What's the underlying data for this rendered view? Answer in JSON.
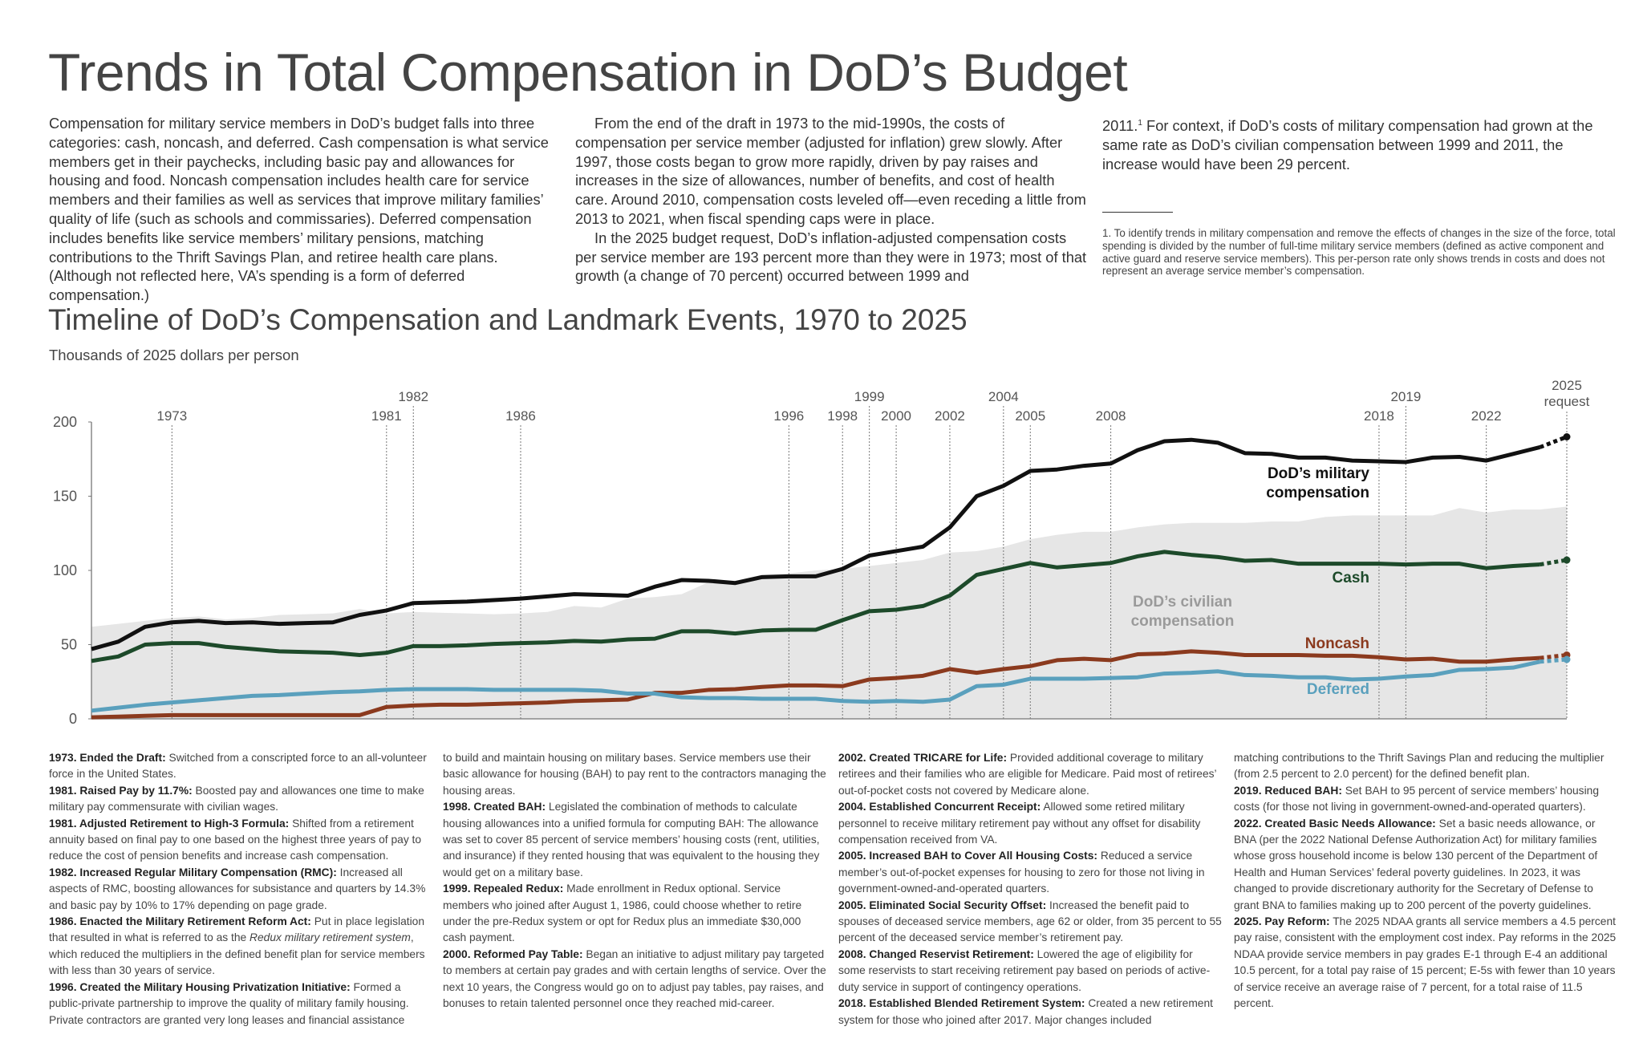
{
  "title": "Trends in Total Compensation in DoD’s Budget",
  "intro": {
    "col1": "Compensation for military service members in DoD’s budget falls into three categories: cash, noncash, and deferred. Cash compensation is what service members get in their paychecks, including basic pay and allowances for housing and food. Noncash compensation includes health care for service members and their families as well as services that improve military families’ quality of life (such as schools and commissaries). Deferred compensation includes benefits like service members’ military pensions, matching contributions to the Thrift Savings Plan, and retiree health care plans. (Although not reflected here, VA’s spending is a form of deferred compensation.)",
    "col2_p1": "From the end of the draft in 1973 to the mid-1990s, the costs of compensation per service member (adjusted for inflation) grew slowly. After 1997, those costs began to grow more rapidly, driven by pay raises and increases in the size of allowances, number of benefits, and cost of health care. Around 2010, compensation costs leveled off—even receding a little from 2013 to 2021, when fiscal spending caps were in place.",
    "col2_p2": "In the 2025 budget request, DoD’s inflation-adjusted compensation costs per service member are 193 percent more than they were in 1973; most of that growth (a change of 70 percent) occurred between 1999 and",
    "col3_lead": "2011.",
    "col3_sup": "1",
    "col3_text": " For context, if DoD’s costs of military compensation had grown at the same rate as DoD’s civilian compensation between 1999 and 2011, the increase would have been 29 percent.",
    "footnote": "1.  To identify trends in military compensation and remove the effects of changes in the size of the force, total spending is divided by the number of full-time military service members (defined as active component and active guard and reserve service members). This per-person rate only shows trends in costs and does not represent an average service member’s compensation."
  },
  "chart_data": {
    "type": "line",
    "title": "Timeline of DoD’s Compensation and Landmark Events, 1970 to 2025",
    "ylabel": "Thousands of 2025 dollars per person",
    "ylim": [
      0,
      200
    ],
    "xlim": [
      1970,
      2025
    ],
    "yticks": [
      "0",
      "50",
      "100",
      "150",
      "200"
    ],
    "grid": false,
    "x": [
      1970,
      1971,
      1972,
      1973,
      1974,
      1975,
      1976,
      1977,
      1978,
      1979,
      1980,
      1981,
      1982,
      1983,
      1984,
      1985,
      1986,
      1987,
      1988,
      1989,
      1990,
      1991,
      1992,
      1993,
      1994,
      1995,
      1996,
      1997,
      1998,
      1999,
      2000,
      2001,
      2002,
      2003,
      2004,
      2005,
      2006,
      2007,
      2008,
      2009,
      2010,
      2011,
      2012,
      2013,
      2014,
      2015,
      2016,
      2017,
      2018,
      2019,
      2020,
      2021,
      2022,
      2023,
      2024,
      2025
    ],
    "projected_from": 2024,
    "series": [
      {
        "name": "DoD’s military compensation",
        "color": "#111111",
        "values": [
          47,
          52,
          62,
          65,
          66,
          64.5,
          65,
          64,
          64.5,
          65,
          70,
          73,
          78,
          78.5,
          79,
          80,
          81,
          82.5,
          84,
          83.5,
          83,
          89,
          93.5,
          93,
          91.5,
          95.5,
          96,
          96,
          101,
          110,
          113,
          116,
          129,
          150,
          157,
          167,
          168,
          170.5,
          172,
          181,
          187,
          188,
          186,
          179,
          178.5,
          176,
          176,
          174,
          173.5,
          173,
          176,
          176.5,
          174,
          178.5,
          183,
          190
        ]
      },
      {
        "name": "Cash",
        "color": "#1d4a2a",
        "values": [
          39,
          42,
          50,
          51,
          51,
          48.5,
          47,
          45.5,
          45,
          44.5,
          43,
          44.5,
          49,
          49,
          49.5,
          50.5,
          51,
          51.5,
          52.5,
          52,
          53.5,
          54,
          59,
          59,
          57.5,
          59.5,
          60,
          60,
          66.5,
          72.5,
          73.5,
          76,
          83,
          97,
          101,
          105,
          102,
          103.5,
          105,
          109.5,
          112.5,
          110.5,
          109,
          106.5,
          107,
          104.5,
          104.5,
          104.5,
          104.5,
          104,
          104.5,
          104.5,
          101.5,
          103,
          104,
          107
        ]
      },
      {
        "name": "Noncash",
        "color": "#8b3a1e",
        "values": [
          1,
          1.5,
          2,
          2.5,
          2.5,
          2.5,
          2.5,
          2.5,
          2.5,
          2.5,
          2.5,
          8,
          9,
          9.5,
          9.5,
          10,
          10.5,
          11,
          12,
          12.5,
          13,
          17.5,
          17.5,
          19.5,
          20,
          21.5,
          22.5,
          22.5,
          22,
          26.5,
          27.5,
          29,
          33.5,
          31,
          33.5,
          35.5,
          39.5,
          40.5,
          39.5,
          43.5,
          44,
          45.5,
          44.5,
          43,
          43,
          43,
          42.5,
          42.5,
          41.5,
          40,
          40.5,
          38.5,
          38.5,
          40,
          41,
          43
        ]
      },
      {
        "name": "Deferred",
        "color": "#5aa0bd",
        "values": [
          5.5,
          7.5,
          9.5,
          11,
          12.5,
          14,
          15.5,
          16,
          17,
          18,
          18.5,
          19.5,
          20,
          20,
          20,
          19.5,
          19.5,
          19.5,
          19.5,
          19,
          17,
          17,
          14.5,
          14,
          14,
          13.5,
          13.5,
          13.5,
          12,
          11.5,
          12,
          11.5,
          13,
          22,
          23,
          27,
          27,
          27,
          27.5,
          28,
          30.5,
          31,
          32,
          29.5,
          29,
          28,
          28,
          26.5,
          27,
          28.5,
          29.5,
          33,
          33.5,
          34.5,
          38.5,
          40
        ]
      },
      {
        "name": "DoD’s civilian compensation",
        "type": "area",
        "color": "#e6e6e6",
        "values": [
          62,
          64,
          66,
          68,
          69,
          67,
          68,
          70,
          70.5,
          71,
          74,
          71,
          72,
          71.5,
          71,
          70.5,
          71,
          72,
          76,
          75,
          81,
          82,
          84,
          92,
          93,
          97,
          98,
          100,
          101,
          103,
          105,
          107,
          112,
          113,
          116,
          121,
          124,
          126,
          126,
          129,
          131,
          132,
          132,
          132,
          133,
          133,
          136,
          137,
          137,
          137,
          137,
          142,
          139,
          141,
          141,
          143
        ]
      }
    ],
    "series_labels": {
      "military": [
        "DoD’s military",
        "compensation"
      ],
      "cash": "Cash",
      "noncash": "Noncash",
      "deferred": "Deferred",
      "civilian": [
        "DoD’s civilian",
        "compensation"
      ]
    },
    "events": [
      {
        "year": 1973,
        "label": "1973",
        "row": 1
      },
      {
        "year": 1981,
        "label": "1981",
        "row": 1
      },
      {
        "year": 1982,
        "label": "1982",
        "row": 2
      },
      {
        "year": 1986,
        "label": "1986",
        "row": 1
      },
      {
        "year": 1996,
        "label": "1996",
        "row": 1
      },
      {
        "year": 1998,
        "label": "1998",
        "row": 1
      },
      {
        "year": 1999,
        "label": "1999",
        "row": 2
      },
      {
        "year": 2000,
        "label": "2000",
        "row": 1
      },
      {
        "year": 2002,
        "label": "2002",
        "row": 1
      },
      {
        "year": 2004,
        "label": "2004",
        "row": 2
      },
      {
        "year": 2005,
        "label": "2005",
        "row": 1
      },
      {
        "year": 2008,
        "label": "2008",
        "row": 1
      },
      {
        "year": 2018,
        "label": "2018",
        "row": 1
      },
      {
        "year": 2019,
        "label": "2019",
        "row": 2
      },
      {
        "year": 2022,
        "label": "2022",
        "row": 1
      },
      {
        "year": 2025,
        "label": "2025",
        "sublabel": "request",
        "row": 3
      }
    ]
  },
  "notes": [
    [
      {
        "title": "1973. Ended the Draft:",
        "text": " Switched from a conscripted force to an all-volunteer force in the United States."
      },
      {
        "title": "1981. Raised Pay by 11.7%:",
        "text": " Boosted pay and allowances one time to make military pay commensurate with civilian wages."
      },
      {
        "title": "1981. Adjusted Retirement to High-3 Formula:",
        "text": " Shifted from a retirement annuity based on final pay to one based on the highest three years of pay to reduce the cost of pension benefits and increase cash compensation."
      },
      {
        "title": "1982. Increased Regular Military Compensation (RMC):",
        "text": " Increased all aspects of RMC, boosting allowances for subsistance and quarters by 14.3% and basic pay by 10% to 17% depending on page grade."
      },
      {
        "title": "1986. Enacted the Military Retirement Reform Act:",
        "text": " Put in place legislation that resulted in what is referred to as the ",
        "italic": "Redux military retirement system",
        "text2": ", which reduced the multipliers in the defined benefit plan for service members with less than 30 years of service."
      },
      {
        "title": "1996. Created the Military Housing Privatization Initiative:",
        "text": " Formed a public-private partnership to improve the quality of military family housing. Private contractors are granted very long leases and financial assistance"
      }
    ],
    [
      {
        "text": "to build and maintain housing on military bases. Service members use their basic allowance for housing (BAH) to pay rent to the contractors managing the housing areas."
      },
      {
        "title": "1998. Created BAH:",
        "text": " Legislated the combination of methods to calculate housing allowances into a unified formula for computing BAH: The allowance was set to cover 85 percent of service members’ housing costs (rent, utilities, and insurance) if they rented housing that was equivalent to the housing they would get on a military base."
      },
      {
        "title": "1999. Repealed Redux:",
        "text": " Made enrollment in Redux optional. Service members who joined after August 1, 1986, could choose whether to retire under the pre-Redux system or opt for Redux plus an immediate $30,000 cash payment."
      },
      {
        "title": "2000. Reformed Pay Table:",
        "text": " Began an initiative to adjust military pay targeted to members at certain pay grades and with certain lengths of service. Over the next 10 years, the Congress would go on to adjust pay tables, pay raises, and bonuses to retain talented personnel once they reached mid-career."
      }
    ],
    [
      {
        "title": "2002. Created TRICARE for Life:",
        "text": " Provided additional coverage to military retirees and their families who are eligible for Medicare. Paid most of retirees’ out-of-pocket costs not covered by Medicare alone."
      },
      {
        "title": "2004. Established Concurrent Receipt:",
        "text": " Allowed some retired military personnel to receive military retirement pay without any offset for disability compensation received from VA."
      },
      {
        "title": "2005. Increased BAH to Cover All Housing Costs:",
        "text": " Reduced a service member’s out-of-pocket expenses for housing to zero for those not living in government-owned-and-operated quarters."
      },
      {
        "title": "2005. Eliminated Social Security Offset:",
        "text": " Increased the benefit paid to spouses of deceased service members, age 62 or older, from 35 percent to 55 percent of the deceased service member’s retirement pay."
      },
      {
        "title": "2008. Changed Reservist Retirement:",
        "text": " Lowered the age of eligibility for some reservists to start receiving retirement pay based on periods of active-duty service in support of contingency operations."
      },
      {
        "title": "2018. Established Blended Retirement System:",
        "text": " Created a new retirement system for those who joined after 2017. Major changes included"
      }
    ],
    [
      {
        "text": "matching contributions to the Thrift Savings Plan and reducing the multiplier (from 2.5 percent to 2.0 percent) for the defined benefit plan."
      },
      {
        "title": "2019. Reduced BAH:",
        "text": " Set BAH to 95 percent of service members’ housing costs (for those not living in government-owned-and-operated quarters)."
      },
      {
        "title": "2022. Created Basic Needs Allowance:",
        "text": " Set a basic needs allowance, or BNA (per the 2022 National Defense Authorization Act) for military families whose gross household income is below 130 percent of the Department of Health and Human Services’ federal poverty guidelines. In 2023, it was changed to provide discretionary authority for the Secretary of Defense to grant BNA to families making up to 200 percent of the poverty guidelines."
      },
      {
        "title": "2025. Pay Reform:",
        "text": " The 2025 NDAA grants all service members a 4.5 percent pay raise, consistent with the employment cost index. Pay reforms in the 2025 NDAA provide service members in pay grades E-1 through E-4 an additional 10.5 percent, for a total pay raise of 15 percent; E-5s with fewer than 10 years of service receive an average raise of 7 percent, for a total raise of 11.5 percent."
      }
    ]
  ]
}
